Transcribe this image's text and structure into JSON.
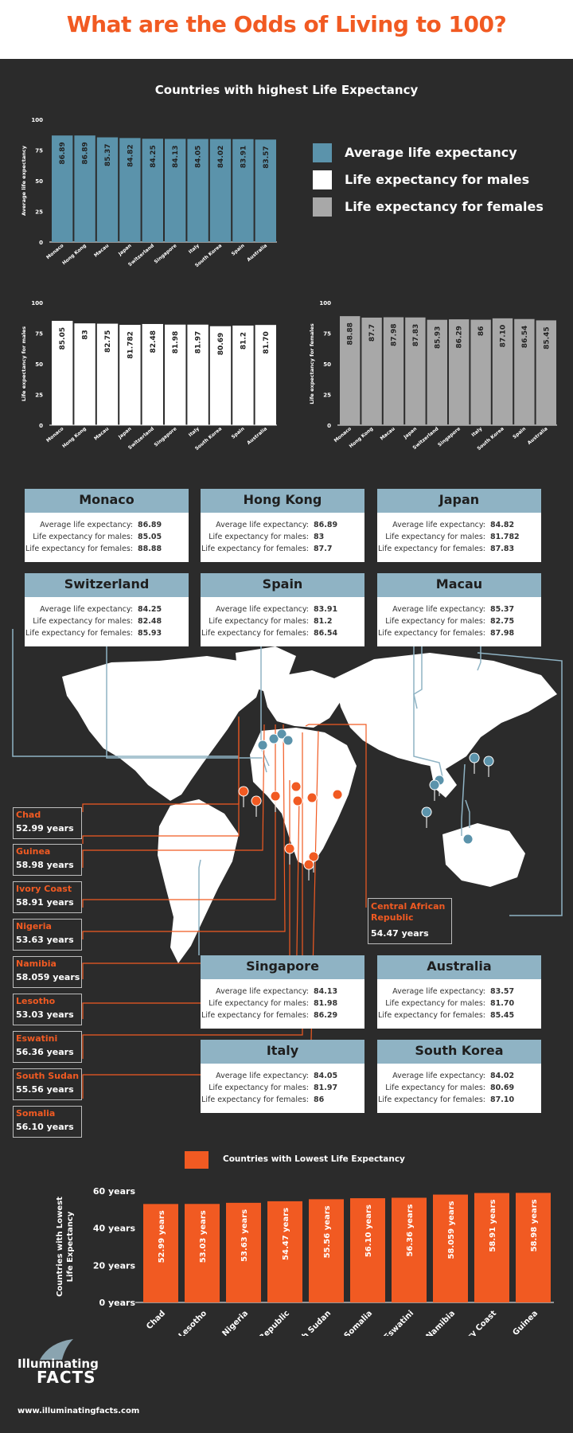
{
  "title": "What are the Odds of Living to 100?",
  "subtitle": "Countries with highest Life Expectancy",
  "legend": [
    {
      "label": "Average life expectancy",
      "color": "#5b93ab"
    },
    {
      "label": "Life expectancy for males",
      "color": "#ffffff"
    },
    {
      "label": "Life expectancy for females",
      "color": "#a8a8a8"
    }
  ],
  "chart_data": [
    {
      "type": "bar",
      "ylabel": "Average life expectancy",
      "ylim": [
        0,
        100
      ],
      "yticks": [
        "0",
        "25",
        "50",
        "75",
        "100"
      ],
      "color": "#5b93ab",
      "categories": [
        "Monaco",
        "Hong Kong",
        "Macau",
        "Japan",
        "Switzerland",
        "Singapore",
        "Italy",
        "South Korea",
        "Spain",
        "Australia"
      ],
      "values": [
        86.89,
        86.89,
        85.37,
        84.82,
        84.25,
        84.13,
        84.05,
        84.02,
        83.91,
        83.57
      ],
      "labels": [
        "86.89",
        "86.89",
        "85.37",
        "84.82",
        "84.25",
        "84.13",
        "84.05",
        "84.02",
        "83.91",
        "83.57"
      ]
    },
    {
      "type": "bar",
      "ylabel": "Life expectancy for males",
      "ylim": [
        0,
        100
      ],
      "yticks": [
        "0",
        "25",
        "50",
        "75",
        "100"
      ],
      "color": "#ffffff",
      "categories": [
        "Monaco",
        "Hong Kong",
        "Macau",
        "Japan",
        "Switzerland",
        "Singapore",
        "Italy",
        "South Korea",
        "Spain",
        "Australia"
      ],
      "values": [
        85.05,
        83,
        82.75,
        81.782,
        82.48,
        81.98,
        81.97,
        80.69,
        81.2,
        81.7
      ],
      "labels": [
        "85.05",
        "83",
        "82.75",
        "81.782",
        "82.48",
        "81.98",
        "81.97",
        "80.69",
        "81.2",
        "81.70"
      ]
    },
    {
      "type": "bar",
      "ylabel": "Life expectancy for females",
      "ylim": [
        0,
        100
      ],
      "yticks": [
        "0",
        "25",
        "50",
        "75",
        "100"
      ],
      "color": "#a8a8a8",
      "categories": [
        "Monaco",
        "Hong Kong",
        "Macau",
        "Japan",
        "Switzerland",
        "Singapore",
        "Italy",
        "South Korea",
        "Spain",
        "Australia"
      ],
      "values": [
        88.88,
        87.7,
        87.98,
        87.83,
        85.93,
        86.29,
        86,
        87.1,
        86.54,
        85.45
      ],
      "labels": [
        "88.88",
        "87.7",
        "87.98",
        "87.83",
        "85.93",
        "86.29",
        "86",
        "87.10",
        "86.54",
        "85.45"
      ]
    },
    {
      "type": "bar",
      "legend": "Countries with Lowest Life Expectancy",
      "ylabel": "Countries with Lowest Life Expectancy",
      "ylim": [
        0,
        60
      ],
      "yticks": [
        "0 years",
        "20 years",
        "40 years",
        "60 years"
      ],
      "color": "#f15a22",
      "categories": [
        "Chad",
        "Lesotho",
        "Nigeria",
        "Central African Republic",
        "South Sudan",
        "Somalia",
        "Eswatini",
        "Namibia",
        "Ivory Coast",
        "Guinea"
      ],
      "values": [
        52.99,
        53.03,
        53.63,
        54.47,
        55.56,
        56.1,
        56.36,
        58.059,
        58.91,
        58.98
      ],
      "labels": [
        "52.99 years",
        "53.03 years",
        "53.63 years",
        "54.47 years",
        "55.56 years",
        "56.10 years",
        "56.36 years",
        "58.059 years",
        "58.91 years",
        "58.98 years"
      ]
    }
  ],
  "card_keys": {
    "avg": "Average life expectancy:",
    "males": "Life expectancy for males:",
    "females": "Life expectancy for females:"
  },
  "cards": [
    {
      "name": "Monaco",
      "avg": "86.89",
      "males": "85.05",
      "females": "88.88"
    },
    {
      "name": "Hong Kong",
      "avg": "86.89",
      "males": "83",
      "females": "87.7"
    },
    {
      "name": "Japan",
      "avg": "84.82",
      "males": "81.782",
      "females": "87.83"
    },
    {
      "name": "Switzerland",
      "avg": "84.25",
      "males": "82.48",
      "females": "85.93"
    },
    {
      "name": "Spain",
      "avg": "83.91",
      "males": "81.2",
      "females": "86.54"
    },
    {
      "name": "Macau",
      "avg": "85.37",
      "males": "82.75",
      "females": "87.98"
    },
    {
      "name": "Singapore",
      "avg": "84.13",
      "males": "81.98",
      "females": "86.29"
    },
    {
      "name": "Australia",
      "avg": "83.57",
      "males": "81.70",
      "females": "85.45"
    },
    {
      "name": "Italy",
      "avg": "84.05",
      "males": "81.97",
      "females": "86"
    },
    {
      "name": "South Korea",
      "avg": "84.02",
      "males": "80.69",
      "females": "87.10"
    }
  ],
  "low_labels": [
    {
      "name": "Chad",
      "years": "52.99 years"
    },
    {
      "name": "Guinea",
      "years": "58.98 years"
    },
    {
      "name": "Ivory Coast",
      "years": "58.91 years"
    },
    {
      "name": "Nigeria",
      "years": "53.63 years"
    },
    {
      "name": "Namibia",
      "years": "58.059 years"
    },
    {
      "name": "Lesotho",
      "years": "53.03 years"
    },
    {
      "name": "Eswatini",
      "years": "56.36 years"
    },
    {
      "name": "South Sudan",
      "years": "55.56 years"
    },
    {
      "name": "Somalia",
      "years": "56.10 years"
    }
  ],
  "car_label": {
    "name": "Central African Republic",
    "years": "54.47 years"
  },
  "logo": {
    "line1": "Illuminating",
    "line2": "FACTS"
  },
  "website": "www.illuminatingfacts.com"
}
